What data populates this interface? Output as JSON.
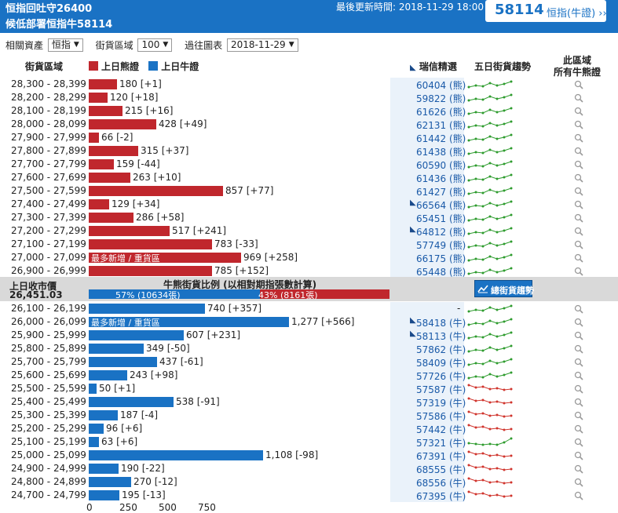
{
  "header": {
    "title1": "恒指回吐守26400",
    "title2": "候低部署恒指牛58114",
    "update_label": "最後更新時間: 2018-11-29 18:00",
    "code": "58114",
    "code_label": "恒指(牛證) ››"
  },
  "filters": {
    "asset_label": "相關資產",
    "asset_value": "恒指",
    "range_label": "街貨區域",
    "range_value": "100",
    "chart_label": "過往圖表",
    "chart_value": "2018-11-29"
  },
  "columns": {
    "zone": "街貨區域",
    "bear_legend": "上日熊證",
    "bull_legend": "上日牛證",
    "featured": "瑞信精選",
    "trend": "五日街貨趨勢",
    "all_line1": "此區域",
    "all_line2": "所有牛熊證"
  },
  "colors": {
    "bear": "#c0272d",
    "bull": "#1a72c4",
    "trend_up": "#2e9c2e",
    "trend_down": "#d0342c"
  },
  "bear_rows": [
    {
      "zone": "28,300 - 28,399",
      "value": 180,
      "label": "180 [+1]",
      "warrant": "60404 (熊)",
      "featured": false,
      "trend": "up"
    },
    {
      "zone": "28,200 - 28,299",
      "value": 120,
      "label": "120 [+18]",
      "warrant": "59822 (熊)",
      "featured": false,
      "trend": "up"
    },
    {
      "zone": "28,100 - 28,199",
      "value": 215,
      "label": "215 [+16]",
      "warrant": "61626 (熊)",
      "featured": false,
      "trend": "up"
    },
    {
      "zone": "28,000 - 28,099",
      "value": 428,
      "label": "428 [+49]",
      "warrant": "62131 (熊)",
      "featured": false,
      "trend": "up"
    },
    {
      "zone": "27,900 - 27,999",
      "value": 66,
      "label": "66 [-2]",
      "warrant": "61442 (熊)",
      "featured": false,
      "trend": "up"
    },
    {
      "zone": "27,800 - 27,899",
      "value": 315,
      "label": "315 [+37]",
      "warrant": "61438 (熊)",
      "featured": false,
      "trend": "up"
    },
    {
      "zone": "27,700 - 27,799",
      "value": 159,
      "label": "159 [-44]",
      "warrant": "60590 (熊)",
      "featured": false,
      "trend": "up"
    },
    {
      "zone": "27,600 - 27,699",
      "value": 263,
      "label": "263 [+10]",
      "warrant": "61436 (熊)",
      "featured": false,
      "trend": "up"
    },
    {
      "zone": "27,500 - 27,599",
      "value": 857,
      "label": "857 [+77]",
      "warrant": "61427 (熊)",
      "featured": false,
      "trend": "up"
    },
    {
      "zone": "27,400 - 27,499",
      "value": 129,
      "label": "129 [+34]",
      "warrant": "66564 (熊)",
      "featured": true,
      "trend": "up"
    },
    {
      "zone": "27,300 - 27,399",
      "value": 286,
      "label": "286 [+58]",
      "warrant": "65451 (熊)",
      "featured": false,
      "trend": "up"
    },
    {
      "zone": "27,200 - 27,299",
      "value": 517,
      "label": "517 [+241]",
      "warrant": "64812 (熊)",
      "featured": true,
      "trend": "up"
    },
    {
      "zone": "27,100 - 27,199",
      "value": 783,
      "label": "783 [-33]",
      "warrant": "57749 (熊)",
      "featured": false,
      "trend": "up"
    },
    {
      "zone": "27,000 - 27,099",
      "value": 969,
      "label": "969 [+258]",
      "warrant": "66175 (熊)",
      "featured": false,
      "trend": "up",
      "note": "最多新增 / 重貨區"
    },
    {
      "zone": "26,900 - 26,999",
      "value": 785,
      "label": "785 [+152]",
      "warrant": "65448 (熊)",
      "featured": false,
      "trend": "up"
    }
  ],
  "middle": {
    "close_label": "上日收市價",
    "close_value": "26,451.03",
    "ratio_title": "牛熊街貨比例 (以相對期指張數計算)",
    "bull_pct": 57,
    "bull_text": "57% (10634張)",
    "bear_text": "43% (8161張)",
    "trend_button": "總街貨趨勢"
  },
  "bull_rows": [
    {
      "zone": "26,100 - 26,199",
      "value": 740,
      "label": "740 [+357]",
      "warrant": "-",
      "featured": false,
      "trend": "up"
    },
    {
      "zone": "26,000 - 26,099",
      "value": 1277,
      "label": "1,277 [+566]",
      "warrant": "58418 (牛)",
      "featured": true,
      "trend": "up",
      "note": "最多新增 / 重貨區"
    },
    {
      "zone": "25,900 - 25,999",
      "value": 607,
      "label": "607 [+231]",
      "warrant": "58113 (牛)",
      "featured": true,
      "trend": "up"
    },
    {
      "zone": "25,800 - 25,899",
      "value": 349,
      "label": "349 [-50]",
      "warrant": "57862 (牛)",
      "featured": false,
      "trend": "up"
    },
    {
      "zone": "25,700 - 25,799",
      "value": 437,
      "label": "437 [-61]",
      "warrant": "58409 (牛)",
      "featured": false,
      "trend": "up"
    },
    {
      "zone": "25,600 - 25,699",
      "value": 243,
      "label": "243 [+98]",
      "warrant": "57726 (牛)",
      "featured": false,
      "trend": "up"
    },
    {
      "zone": "25,500 - 25,599",
      "value": 50,
      "label": "50 [+1]",
      "warrant": "57587 (牛)",
      "featured": false,
      "trend": "down"
    },
    {
      "zone": "25,400 - 25,499",
      "value": 538,
      "label": "538 [-91]",
      "warrant": "57319 (牛)",
      "featured": false,
      "trend": "down"
    },
    {
      "zone": "25,300 - 25,399",
      "value": 187,
      "label": "187 [-4]",
      "warrant": "57586 (牛)",
      "featured": false,
      "trend": "down"
    },
    {
      "zone": "25,200 - 25,299",
      "value": 96,
      "label": "96 [+6]",
      "warrant": "57442 (牛)",
      "featured": false,
      "trend": "down"
    },
    {
      "zone": "25,100 - 25,199",
      "value": 63,
      "label": "63 [+6]",
      "warrant": "57321 (牛)",
      "featured": false,
      "trend": "mixed"
    },
    {
      "zone": "25,000 - 25,099",
      "value": 1108,
      "label": "1,108 [-98]",
      "warrant": "67391 (牛)",
      "featured": false,
      "trend": "down"
    },
    {
      "zone": "24,900 - 24,999",
      "value": 190,
      "label": "190 [-22]",
      "warrant": "68555 (牛)",
      "featured": false,
      "trend": "down"
    },
    {
      "zone": "24,800 - 24,899",
      "value": 270,
      "label": "270 [-12]",
      "warrant": "68556 (牛)",
      "featured": false,
      "trend": "down"
    },
    {
      "zone": "24,700 - 24,799",
      "value": 195,
      "label": "195 [-13]",
      "warrant": "67395 (牛)",
      "featured": false,
      "trend": "down"
    }
  ],
  "axis": {
    "ticks": [
      0,
      250,
      500,
      750
    ],
    "labels": [
      "0",
      "250",
      "500",
      "750"
    ]
  }
}
